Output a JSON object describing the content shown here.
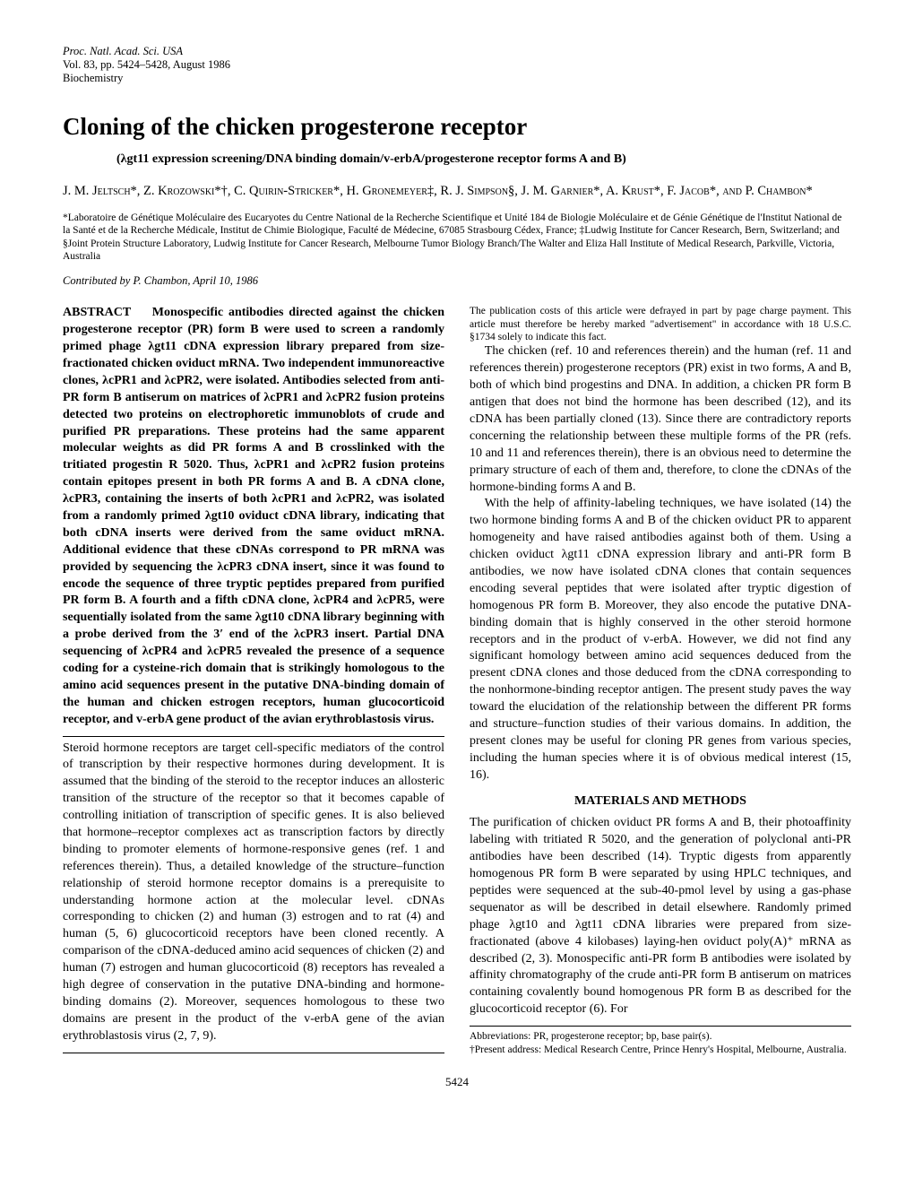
{
  "journal": {
    "line1": "Proc. Natl. Acad. Sci. USA",
    "line2": "Vol. 83, pp. 5424–5428, August 1986",
    "line3": "Biochemistry"
  },
  "title": "Cloning of the chicken progesterone receptor",
  "subtitle": "(λgt11 expression screening/DNA binding domain/v-erbA/progesterone receptor forms A and B)",
  "authors": "J. M. Jeltsch*, Z. Krozowski*†, C. Quirin-Stricker*, H. Gronemeyer‡, R. J. Simpson§, J. M. Garnier*, A. Krust*, F. Jacob*, and P. Chambon*",
  "affiliations": "*Laboratoire de Génétique Moléculaire des Eucaryotes du Centre National de la Recherche Scientifique et Unité 184 de Biologie Moléculaire et de Génie Génétique de l'Institut National de la Santé et de la Recherche Médicale, Institut de Chimie Biologique, Faculté de Médecine, 67085 Strasbourg Cédex, France; ‡Ludwig Institute for Cancer Research, Bern, Switzerland; and §Joint Protein Structure Laboratory, Ludwig Institute for Cancer Research, Melbourne Tumor Biology Branch/The Walter and Eliza Hall Institute of Medical Research, Parkville, Victoria, Australia",
  "contributed": "Contributed by P. Chambon, April 10, 1986",
  "abstract_label": "ABSTRACT",
  "abstract": "Monospecific antibodies directed against the chicken progesterone receptor (PR) form B were used to screen a randomly primed phage λgt11 cDNA expression library prepared from size-fractionated chicken oviduct mRNA. Two independent immunoreactive clones, λcPR1 and λcPR2, were isolated. Antibodies selected from anti-PR form B antiserum on matrices of λcPR1 and λcPR2 fusion proteins detected two proteins on electrophoretic immunoblots of crude and purified PR preparations. These proteins had the same apparent molecular weights as did PR forms A and B crosslinked with the tritiated progestin R 5020. Thus, λcPR1 and λcPR2 fusion proteins contain epitopes present in both PR forms A and B. A cDNA clone, λcPR3, containing the inserts of both λcPR1 and λcPR2, was isolated from a randomly primed λgt10 oviduct cDNA library, indicating that both cDNA inserts were derived from the same oviduct mRNA. Additional evidence that these cDNAs correspond to PR mRNA was provided by sequencing the λcPR3 cDNA insert, since it was found to encode the sequence of three tryptic peptides prepared from purified PR form B. A fourth and a fifth cDNA clone, λcPR4 and λcPR5, were sequentially isolated from the same λgt10 cDNA library beginning with a probe derived from the 3′ end of the λcPR3 insert. Partial DNA sequencing of λcPR4 and λcPR5 revealed the presence of a sequence coding for a cysteine-rich domain that is strikingly homologous to the amino acid sequences present in the putative DNA-binding domain of the human and chicken estrogen receptors, human glucocorticoid receptor, and v-erbA gene product of the avian erythroblastosis virus.",
  "body_p1": "Steroid hormone receptors are target cell-specific mediators of the control of transcription by their respective hormones during development. It is assumed that the binding of the steroid to the receptor induces an allosteric transition of the structure of the receptor so that it becomes capable of controlling initiation of transcription of specific genes. It is also believed that hormone–receptor complexes act as transcription factors by directly binding to promoter elements of hormone-responsive genes (ref. 1 and references therein). Thus, a detailed knowledge of the structure–function relationship of steroid hormone receptor domains is a prerequisite to understanding hormone action at the molecular level. cDNAs corresponding to chicken (2) and human (3) estrogen and to rat (4) and human (5, 6) glucocorticoid receptors have been cloned recently. A comparison of the cDNA-deduced amino acid sequences of chicken (2) and human (7) estrogen and human glucocorticoid (8) receptors has revealed a high degree of conservation in the putative DNA-binding and hormone-binding domains (2). Moreover, sequences homologous to these two domains are present in the product of the v-erbA gene of the avian erythroblastosis virus (2, 7, 9).",
  "body_p2": "The chicken (ref. 10 and references therein) and the human (ref. 11 and references therein) progesterone receptors (PR) exist in two forms, A and B, both of which bind progestins and DNA. In addition, a chicken PR form B antigen that does not bind the hormone has been described (12), and its cDNA has been partially cloned (13). Since there are contradictory reports concerning the relationship between these multiple forms of the PR (refs. 10 and 11 and references therein), there is an obvious need to determine the primary structure of each of them and, therefore, to clone the cDNAs of the hormone-binding forms A and B.",
  "body_p3": "With the help of affinity-labeling techniques, we have isolated (14) the two hormone binding forms A and B of the chicken oviduct PR to apparent homogeneity and have raised antibodies against both of them. Using a chicken oviduct λgt11 cDNA expression library and anti-PR form B antibodies, we now have isolated cDNA clones that contain sequences encoding several peptides that were isolated after tryptic digestion of homogenous PR form B. Moreover, they also encode the putative DNA-binding domain that is highly conserved in the other steroid hormone receptors and in the product of v-erbA. However, we did not find any significant homology between amino acid sequences deduced from the present cDNA clones and those deduced from the cDNA corresponding to the nonhormone-binding receptor antigen. The present study paves the way toward the elucidation of the relationship between the different PR forms and structure–function studies of their various domains. In addition, the present clones may be useful for cloning PR genes from various species, including the human species where it is of obvious medical interest (15, 16).",
  "methods_head": "MATERIALS AND METHODS",
  "methods_p1": "The purification of chicken oviduct PR forms A and B, their photoaffinity labeling with tritiated R 5020, and the generation of polyclonal anti-PR antibodies have been described (14). Tryptic digests from apparently homogenous PR form B were separated by using HPLC techniques, and peptides were sequenced at the sub-40-pmol level by using a gas-phase sequenator as will be described in detail elsewhere. Randomly primed phage λgt10 and λgt11 cDNA libraries were prepared from size-fractionated (above 4 kilobases) laying-hen oviduct poly(A)⁺ mRNA as described (2, 3). Monospecific anti-PR form B antibodies were isolated by affinity chromatography of the crude anti-PR form B antiserum on matrices containing covalently bound homogenous PR form B as described for the glucocorticoid receptor (6). For",
  "footnote_left": "The publication costs of this article were defrayed in part by page charge payment. This article must therefore be hereby marked \"advertisement\" in accordance with 18 U.S.C. §1734 solely to indicate this fact.",
  "footnote_right_1": "Abbreviations: PR, progesterone receptor; bp, base pair(s).",
  "footnote_right_2": "†Present address: Medical Research Centre, Prince Henry's Hospital, Melbourne, Australia.",
  "page_number": "5424"
}
